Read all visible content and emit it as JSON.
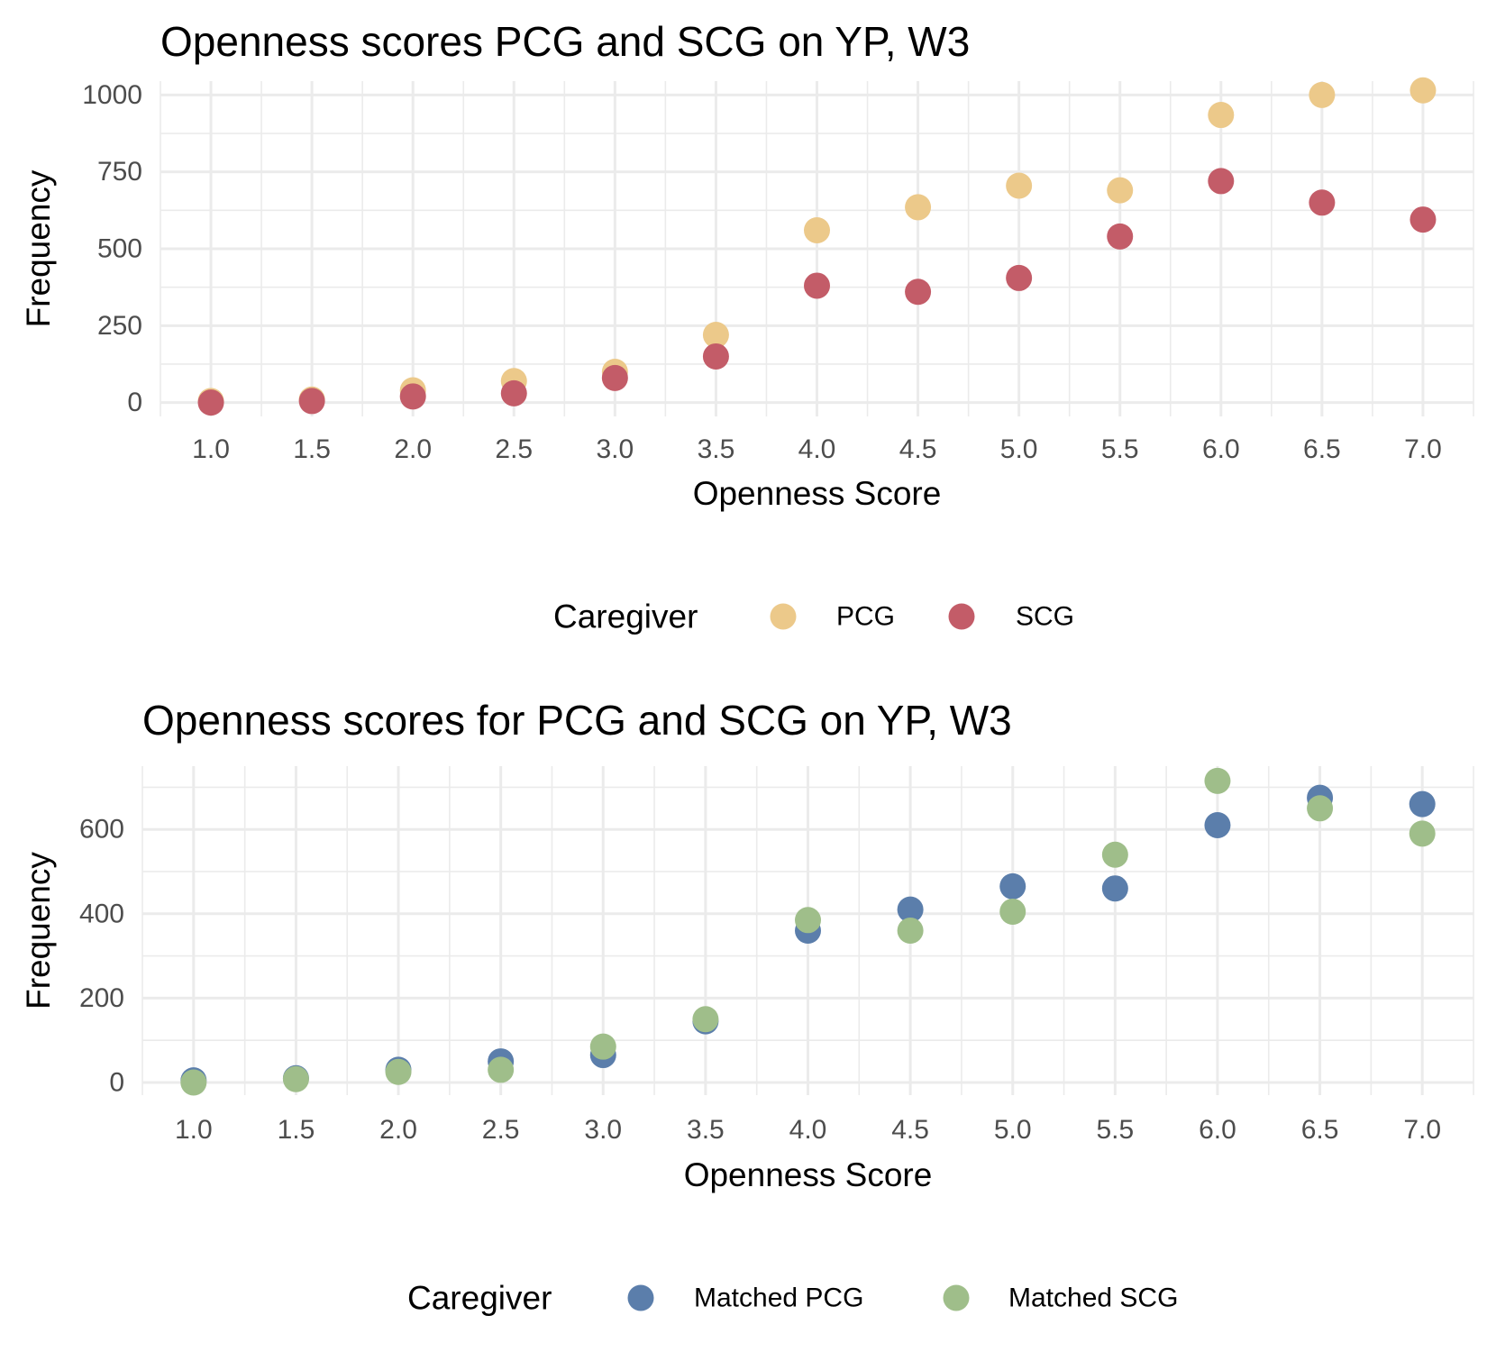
{
  "chart_data": [
    {
      "type": "scatter",
      "title": "Openness scores PCG and SCG on YP, W3",
      "xlabel": "Openness Score",
      "ylabel": "Frequency",
      "x": [
        1.0,
        1.5,
        2.0,
        2.5,
        3.0,
        3.5,
        4.0,
        4.5,
        5.0,
        5.5,
        6.0,
        6.5,
        7.0
      ],
      "x_ticks": [
        "1.0",
        "1.5",
        "2.0",
        "2.5",
        "3.0",
        "3.5",
        "4.0",
        "4.5",
        "5.0",
        "5.5",
        "6.0",
        "6.5",
        "7.0"
      ],
      "y_ticks": [
        "0",
        "250",
        "500",
        "750",
        "1000"
      ],
      "xlim": [
        0.75,
        7.25
      ],
      "ylim": [
        -45,
        1045
      ],
      "grid": true,
      "legend_title": "Caregiver",
      "legend_position": "bottom",
      "series": [
        {
          "name": "PCG",
          "color": "#ecc98a",
          "values": [
            5,
            10,
            40,
            70,
            100,
            220,
            560,
            635,
            705,
            690,
            935,
            1000,
            1015
          ]
        },
        {
          "name": "SCG",
          "color": "#c35c68",
          "values": [
            0,
            5,
            20,
            30,
            80,
            150,
            380,
            360,
            405,
            540,
            720,
            650,
            595
          ]
        }
      ]
    },
    {
      "type": "scatter",
      "title": "Openness scores for PCG and SCG on YP, W3",
      "xlabel": "Openness Score",
      "ylabel": "Frequency",
      "x": [
        1.0,
        1.5,
        2.0,
        2.5,
        3.0,
        3.5,
        4.0,
        4.5,
        5.0,
        5.5,
        6.0,
        6.5,
        7.0
      ],
      "x_ticks": [
        "1.0",
        "1.5",
        "2.0",
        "2.5",
        "3.0",
        "3.5",
        "4.0",
        "4.5",
        "5.0",
        "5.5",
        "6.0",
        "6.5",
        "7.0"
      ],
      "y_ticks": [
        "0",
        "200",
        "400",
        "600"
      ],
      "xlim": [
        0.75,
        7.25
      ],
      "ylim": [
        -30,
        750
      ],
      "grid": true,
      "legend_title": "Caregiver",
      "legend_position": "bottom",
      "series": [
        {
          "name": "Matched PCG",
          "color": "#5b7eab",
          "values": [
            5,
            10,
            30,
            50,
            65,
            145,
            360,
            410,
            465,
            460,
            610,
            675,
            660
          ]
        },
        {
          "name": "Matched SCG",
          "color": "#9fbe8a",
          "values": [
            0,
            8,
            25,
            30,
            85,
            150,
            385,
            360,
            405,
            540,
            715,
            650,
            590
          ]
        }
      ]
    }
  ]
}
